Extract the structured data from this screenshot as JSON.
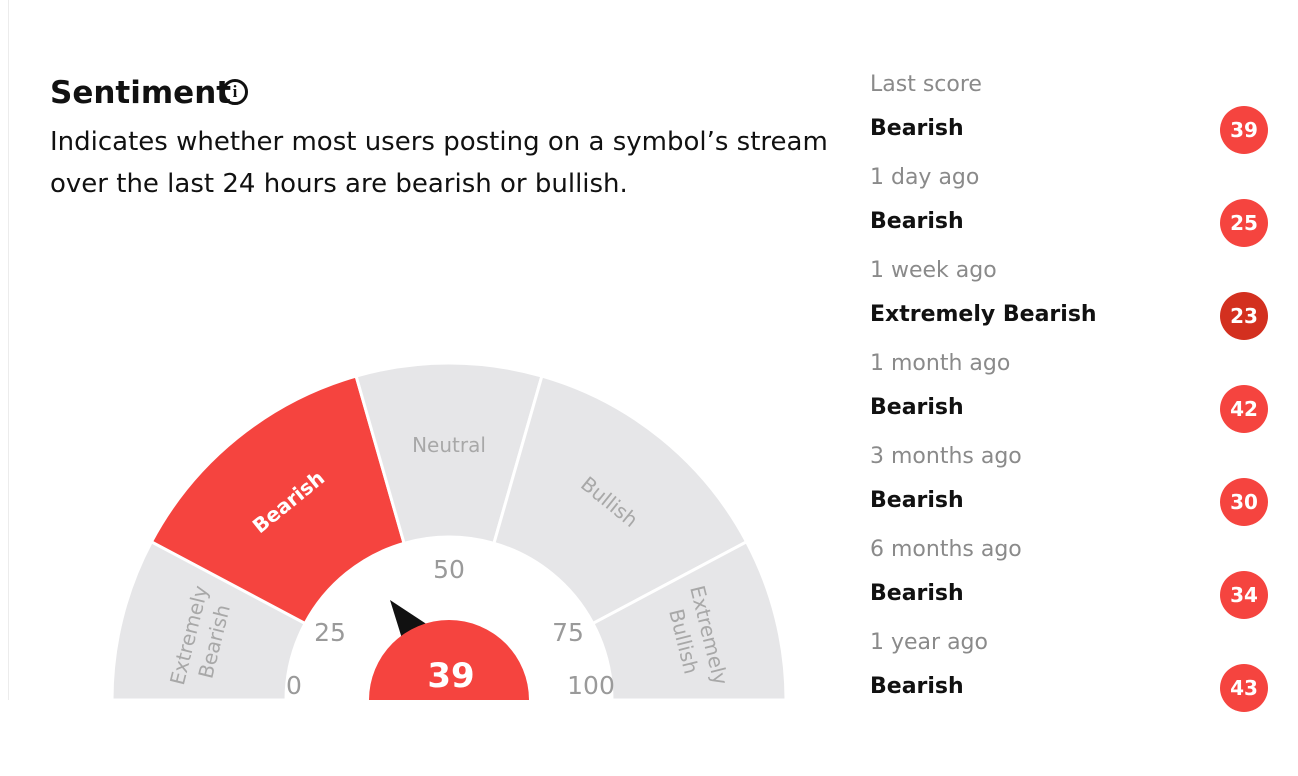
{
  "header": {
    "title": "Sentiment",
    "description": [
      "Indicates whether most users posting on a symbol’s stream",
      "over the last 24 hours are bearish or bullish."
    ]
  },
  "gauge": {
    "segments": [
      [
        "Extremely",
        "Bearish"
      ],
      [
        "Bearish"
      ],
      [
        "Neutral"
      ],
      [
        "Bullish"
      ],
      [
        "Extremely",
        "Bullish"
      ]
    ],
    "active_segment": 1,
    "ticks": [
      "0",
      "25",
      "50",
      "75",
      "100"
    ],
    "score": "39"
  },
  "history": [
    {
      "period": "Last score",
      "label": "Bearish",
      "score": "39"
    },
    {
      "period": "1 day ago",
      "label": "Bearish",
      "score": "25"
    },
    {
      "period": "1 week ago",
      "label": "Extremely Bearish",
      "score": "23"
    },
    {
      "period": "1 month ago",
      "label": "Bearish",
      "score": "42"
    },
    {
      "period": "3 months ago",
      "label": "Bearish",
      "score": "30"
    },
    {
      "period": "6 months ago",
      "label": "Bearish",
      "score": "34"
    },
    {
      "period": "1 year ago",
      "label": "Bearish",
      "score": "43"
    }
  ]
}
